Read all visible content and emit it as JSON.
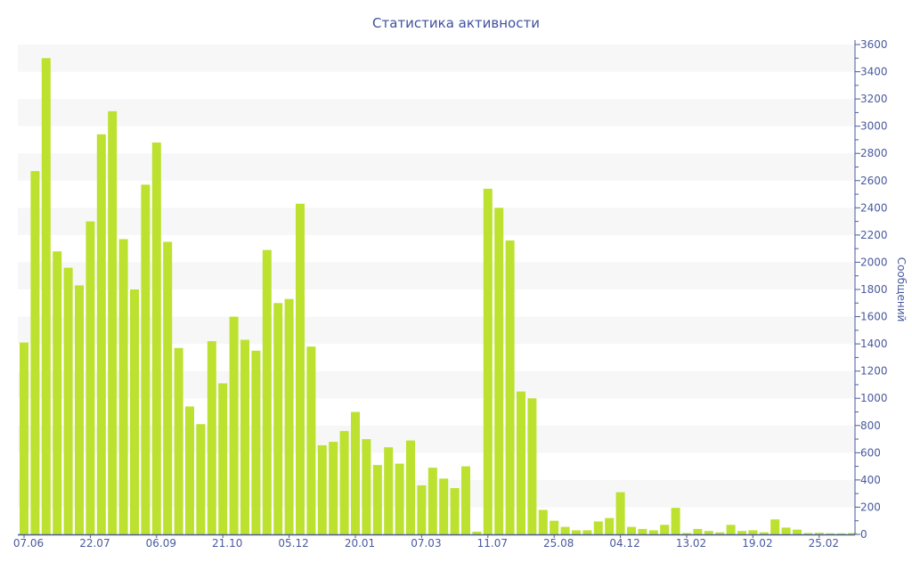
{
  "chart_data": {
    "type": "bar",
    "title": "Статистика активности",
    "xlabel": "",
    "ylabel": "Сообщений",
    "y_axis_side": "right",
    "ylim": [
      0,
      3600
    ],
    "y_ticks": [
      0,
      200,
      400,
      600,
      800,
      1000,
      1200,
      1400,
      1600,
      1800,
      2000,
      2200,
      2400,
      2600,
      2800,
      3000,
      3200,
      3400,
      3600
    ],
    "grid": "alternating horizontal bands",
    "bar_color": "#bce12f",
    "band_color": "#f7f7f7",
    "axis_color": "#4a5a9e",
    "x_ticks": [
      {
        "index": 0,
        "label": "07.06"
      },
      {
        "index": 6,
        "label": "22.07"
      },
      {
        "index": 12,
        "label": "06.09"
      },
      {
        "index": 18,
        "label": "21.10"
      },
      {
        "index": 24,
        "label": "05.12"
      },
      {
        "index": 30,
        "label": "20.01"
      },
      {
        "index": 36,
        "label": "07.03"
      },
      {
        "index": 42,
        "label": "11.07"
      },
      {
        "index": 48,
        "label": "25.08"
      },
      {
        "index": 54,
        "label": "04.12"
      },
      {
        "index": 60,
        "label": "13.02"
      },
      {
        "index": 66,
        "label": "19.02"
      },
      {
        "index": 72,
        "label": "25.02"
      }
    ],
    "values": [
      1410,
      2670,
      3500,
      2080,
      1960,
      1830,
      2300,
      2940,
      3110,
      2170,
      1800,
      2570,
      2880,
      2150,
      1370,
      940,
      810,
      1420,
      1110,
      1600,
      1430,
      1350,
      2090,
      1700,
      1730,
      2430,
      1380,
      655,
      680,
      760,
      900,
      700,
      510,
      640,
      520,
      690,
      360,
      490,
      410,
      340,
      500,
      20,
      2540,
      2400,
      2160,
      1050,
      1000,
      180,
      100,
      55,
      30,
      30,
      95,
      120,
      310,
      55,
      40,
      30,
      70,
      195,
      10,
      40,
      25,
      15,
      70,
      25,
      30,
      15,
      110,
      50,
      35,
      10,
      12,
      8,
      8,
      10
    ]
  }
}
